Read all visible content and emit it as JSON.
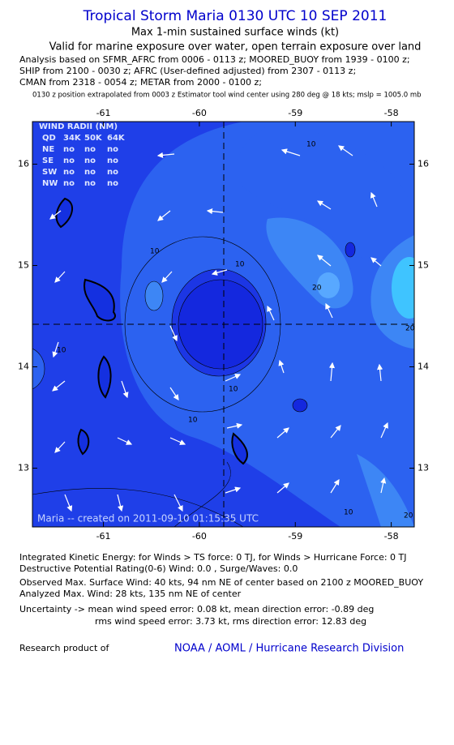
{
  "header": {
    "title": "Tropical Storm Maria 0130 UTC 10 SEP 2011",
    "subtitle": "Max 1-min sustained surface winds (kt)",
    "validity": "Valid for marine exposure over water, open terrain exposure over land",
    "analysis_lines": [
      "Analysis based on SFMR_AFRC from 0006 - 0113 z; MOORED_BUOY from 1939 - 0100 z;",
      "SHIP from 2100 - 0030 z; AFRC (User-defined adjusted) from 2307 - 0113 z;",
      "CMAN from 2318 - 0054 z; METAR from 2000 - 0100 z;"
    ],
    "position_note": "0130 z position extrapolated from 0003 z Estimator tool wind center using 280 deg @ 18 kts; mslp = 1005.0 mb"
  },
  "map": {
    "xlim": [
      -61.74,
      -57.76
    ],
    "ylim": [
      12.42,
      16.42
    ],
    "xticks": [
      -61,
      -60,
      -59,
      -58
    ],
    "yticks": [
      16,
      15,
      14,
      13
    ],
    "wind_radii": {
      "title": "WIND RADII (NM)",
      "header": [
        "QD",
        "34K",
        "50K",
        "64K"
      ],
      "rows": [
        [
          "NE",
          "no",
          "no",
          "no"
        ],
        [
          "SE",
          "no",
          "no",
          "no"
        ],
        [
          "SW",
          "no",
          "no",
          "no"
        ],
        [
          "NW",
          "no",
          "no",
          "no"
        ]
      ]
    },
    "contour_labels": [
      10,
      10,
      10,
      20,
      10,
      10,
      20,
      10,
      20,
      10
    ],
    "credit": "Maria -- created on 2011-09-10 01:15:35 UTC"
  },
  "footer": {
    "energy": "Integrated Kinetic Energy: for Winds > TS force: 0 TJ, for Winds > Hurricane Force: 0 TJ",
    "damage": "Destructive Potential Rating(0-6) Wind: 0.0 , Surge/Waves: 0.0",
    "observed": "Observed Max. Surface Wind: 40 kts, 94 nm NE of center based on 2100 z MOORED_BUOY",
    "analyzed": "Analyzed Max. Wind: 28 kts, 135 nm NE of center",
    "uncertainty_1": "Uncertainty -> mean wind speed error: 0.08 kt, mean direction error: -0.89 deg",
    "uncertainty_2": "rms wind speed error: 3.73 kt, rms direction error: 12.83 deg",
    "research": "Research product of",
    "org": "NOAA / AOML / Hurricane Research Division"
  }
}
